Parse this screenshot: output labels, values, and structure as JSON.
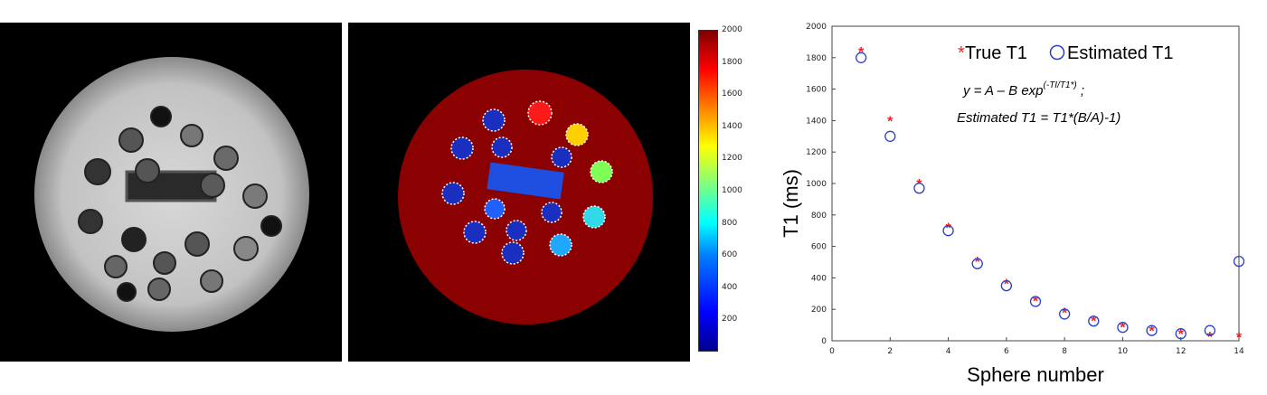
{
  "images": {
    "left_panel": "grayscale MRI of phantom with spheres",
    "right_panel": "T1 map color overlay of phantom"
  },
  "colorbar": {
    "ticks": [
      "2000",
      "1800",
      "1600",
      "1400",
      "1200",
      "1000",
      "800",
      "600",
      "400",
      "200"
    ],
    "range": [
      0,
      2000
    ]
  },
  "chart_data": {
    "type": "scatter",
    "xlabel": "Sphere number",
    "ylabel": "T1 (ms)",
    "xlim": [
      0,
      14
    ],
    "ylim": [
      0,
      2000
    ],
    "xticks": [
      "0",
      "2",
      "4",
      "6",
      "8",
      "10",
      "12",
      "14"
    ],
    "yticks": [
      "0",
      "200",
      "400",
      "600",
      "800",
      "1000",
      "1200",
      "1400",
      "1600",
      "1800",
      "2000"
    ],
    "legend": {
      "placement": "top-right",
      "true_label": "True T1",
      "est_label": "Estimated T1"
    },
    "equation_line1_prefix": "y = A – B exp",
    "equation_line1_sup": "(-TI/T1*)",
    "equation_line1_suffix": " ;",
    "equation_line2": "Estimated T1  = T1*(B/A)-1)",
    "series": [
      {
        "name": "True T1",
        "marker": "asterisk",
        "color": "#e8242b",
        "x": [
          1,
          2,
          3,
          4,
          5,
          6,
          7,
          8,
          9,
          10,
          11,
          12,
          13,
          14
        ],
        "y": [
          1840,
          1400,
          1000,
          720,
          505,
          365,
          255,
          180,
          130,
          90,
          65,
          45,
          30,
          25
        ]
      },
      {
        "name": "Estimated T1",
        "marker": "circle",
        "color": "#2b3fc4",
        "x": [
          1,
          2,
          3,
          4,
          5,
          6,
          7,
          8,
          9,
          10,
          11,
          12,
          13,
          14
        ],
        "y": [
          1800,
          1300,
          970,
          700,
          490,
          350,
          250,
          170,
          125,
          85,
          65,
          45,
          65,
          505
        ]
      }
    ]
  }
}
